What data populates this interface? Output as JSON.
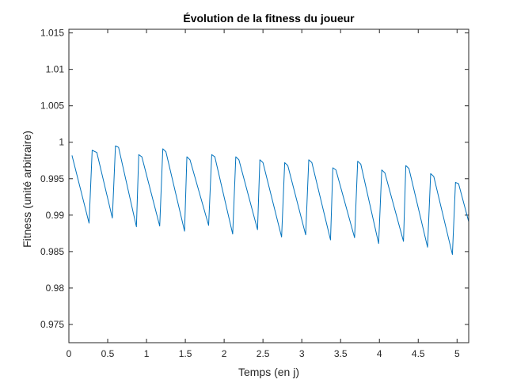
{
  "chart_data": {
    "type": "line",
    "title": "Évolution de la fitness du joueur",
    "xlabel": "Temps (en j)",
    "ylabel": "Fitness (unité arbitraire)",
    "xlim": [
      0,
      5.15
    ],
    "ylim": [
      0.9725,
      1.0155
    ],
    "x_ticks": [
      0,
      0.5,
      1,
      1.5,
      2,
      2.5,
      3,
      3.5,
      4,
      4.5,
      5
    ],
    "x_tick_labels": [
      "0",
      "0.5",
      "1",
      "1.5",
      "2",
      "2.5",
      "3",
      "3.5",
      "4",
      "4.5",
      "5"
    ],
    "y_ticks": [
      0.975,
      0.98,
      0.985,
      0.99,
      0.995,
      1,
      1.005,
      1.01,
      1.015
    ],
    "y_tick_labels": [
      "0.975",
      "0.98",
      "0.985",
      "0.99",
      "0.995",
      "1",
      "1.005",
      "1.01",
      "1.015"
    ],
    "grid": false,
    "line_color": "#0072BD",
    "series": [
      {
        "x": [
          0.04,
          0.26,
          0.3,
          0.36,
          0.56,
          0.6,
          0.64,
          0.87,
          0.9,
          0.94,
          1.17,
          1.21,
          1.25,
          1.49,
          1.52,
          1.56,
          1.8,
          1.84,
          1.88,
          2.11,
          2.15,
          2.19,
          2.43,
          2.46,
          2.5,
          2.74,
          2.78,
          2.82,
          3.05,
          3.09,
          3.13,
          3.37,
          3.4,
          3.44,
          3.68,
          3.72,
          3.76,
          3.99,
          4.03,
          4.07,
          4.31,
          4.34,
          4.38,
          4.62,
          4.66,
          4.7,
          4.94,
          4.98,
          5.02,
          5.15
        ],
        "y": [
          0.9982,
          0.9889,
          0.9989,
          0.9986,
          0.9896,
          0.9995,
          0.9993,
          0.9884,
          0.9983,
          0.998,
          0.9885,
          0.9991,
          0.9987,
          0.9878,
          0.998,
          0.9976,
          0.9886,
          0.9983,
          0.998,
          0.9874,
          0.998,
          0.9976,
          0.988,
          0.9976,
          0.9972,
          0.987,
          0.9972,
          0.9968,
          0.9873,
          0.9976,
          0.9972,
          0.9866,
          0.9965,
          0.9962,
          0.9869,
          0.9974,
          0.997,
          0.9861,
          0.9962,
          0.9958,
          0.9864,
          0.9968,
          0.9964,
          0.9856,
          0.9957,
          0.9953,
          0.9846,
          0.9945,
          0.9943,
          0.9891
        ]
      }
    ]
  }
}
